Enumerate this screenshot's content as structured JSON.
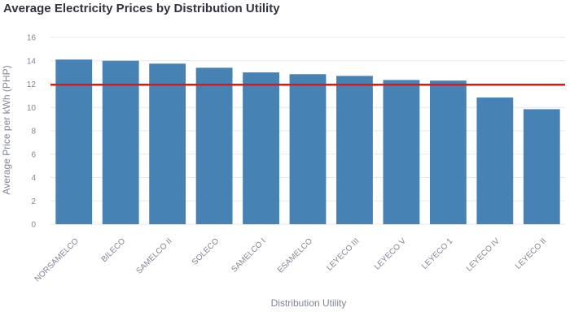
{
  "chart_data": {
    "type": "bar",
    "title": "Average Electricity Prices by Distribution Utility",
    "xlabel": "Distribution Utility",
    "ylabel": "Average Price per kWh (PHP)",
    "categories": [
      "NORSAMELCO",
      "BILECO",
      "SAMELCO II",
      "SOLECO",
      "SAMELCO I",
      "ESAMELCO",
      "LEYECO III",
      "LEYECO V",
      "LEYECO 1",
      "LEYECO IV",
      "LEYECO II"
    ],
    "values": [
      14.1,
      14.0,
      13.75,
      13.4,
      13.0,
      12.85,
      12.7,
      12.35,
      12.3,
      10.85,
      9.85
    ],
    "ylim": [
      0,
      16
    ],
    "yticks": [
      0,
      2,
      4,
      6,
      8,
      10,
      12,
      14,
      16
    ],
    "ytick_labels": [
      "0",
      "2",
      "4",
      "6",
      "8",
      "10",
      "12",
      "14",
      "16"
    ],
    "reference_line": {
      "value": 11.95,
      "color": "#e8140c"
    },
    "bar_color": "#4682b4",
    "grid": true,
    "legend": "none"
  }
}
